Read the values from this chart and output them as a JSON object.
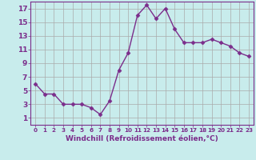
{
  "x": [
    0,
    1,
    2,
    3,
    4,
    5,
    6,
    7,
    8,
    9,
    10,
    11,
    12,
    13,
    14,
    15,
    16,
    17,
    18,
    19,
    20,
    21,
    22,
    23
  ],
  "y": [
    6,
    4.5,
    4.5,
    3,
    3,
    3,
    2.5,
    1.5,
    3.5,
    8,
    10.5,
    16,
    17.5,
    15.5,
    17,
    14,
    12,
    12,
    12,
    12.5,
    12,
    11.5,
    10.5,
    10
  ],
  "line_color": "#7b2d8b",
  "marker": "D",
  "marker_size": 2.5,
  "line_width": 1.0,
  "bg_color": "#c8ecec",
  "grid_color": "#aaaaaa",
  "xlabel": "Windchill (Refroidissement éolien,°C)",
  "xlabel_color": "#7b2d8b",
  "xlabel_fontsize": 6.5,
  "tick_color": "#7b2d8b",
  "ytick_fontsize": 6.5,
  "xtick_fontsize": 5.2,
  "xlim": [
    -0.5,
    23.5
  ],
  "ylim": [
    0,
    18
  ],
  "yticks": [
    1,
    3,
    5,
    7,
    9,
    11,
    13,
    15,
    17
  ],
  "xticks": [
    0,
    1,
    2,
    3,
    4,
    5,
    6,
    7,
    8,
    9,
    10,
    11,
    12,
    13,
    14,
    15,
    16,
    17,
    18,
    19,
    20,
    21,
    22,
    23
  ]
}
